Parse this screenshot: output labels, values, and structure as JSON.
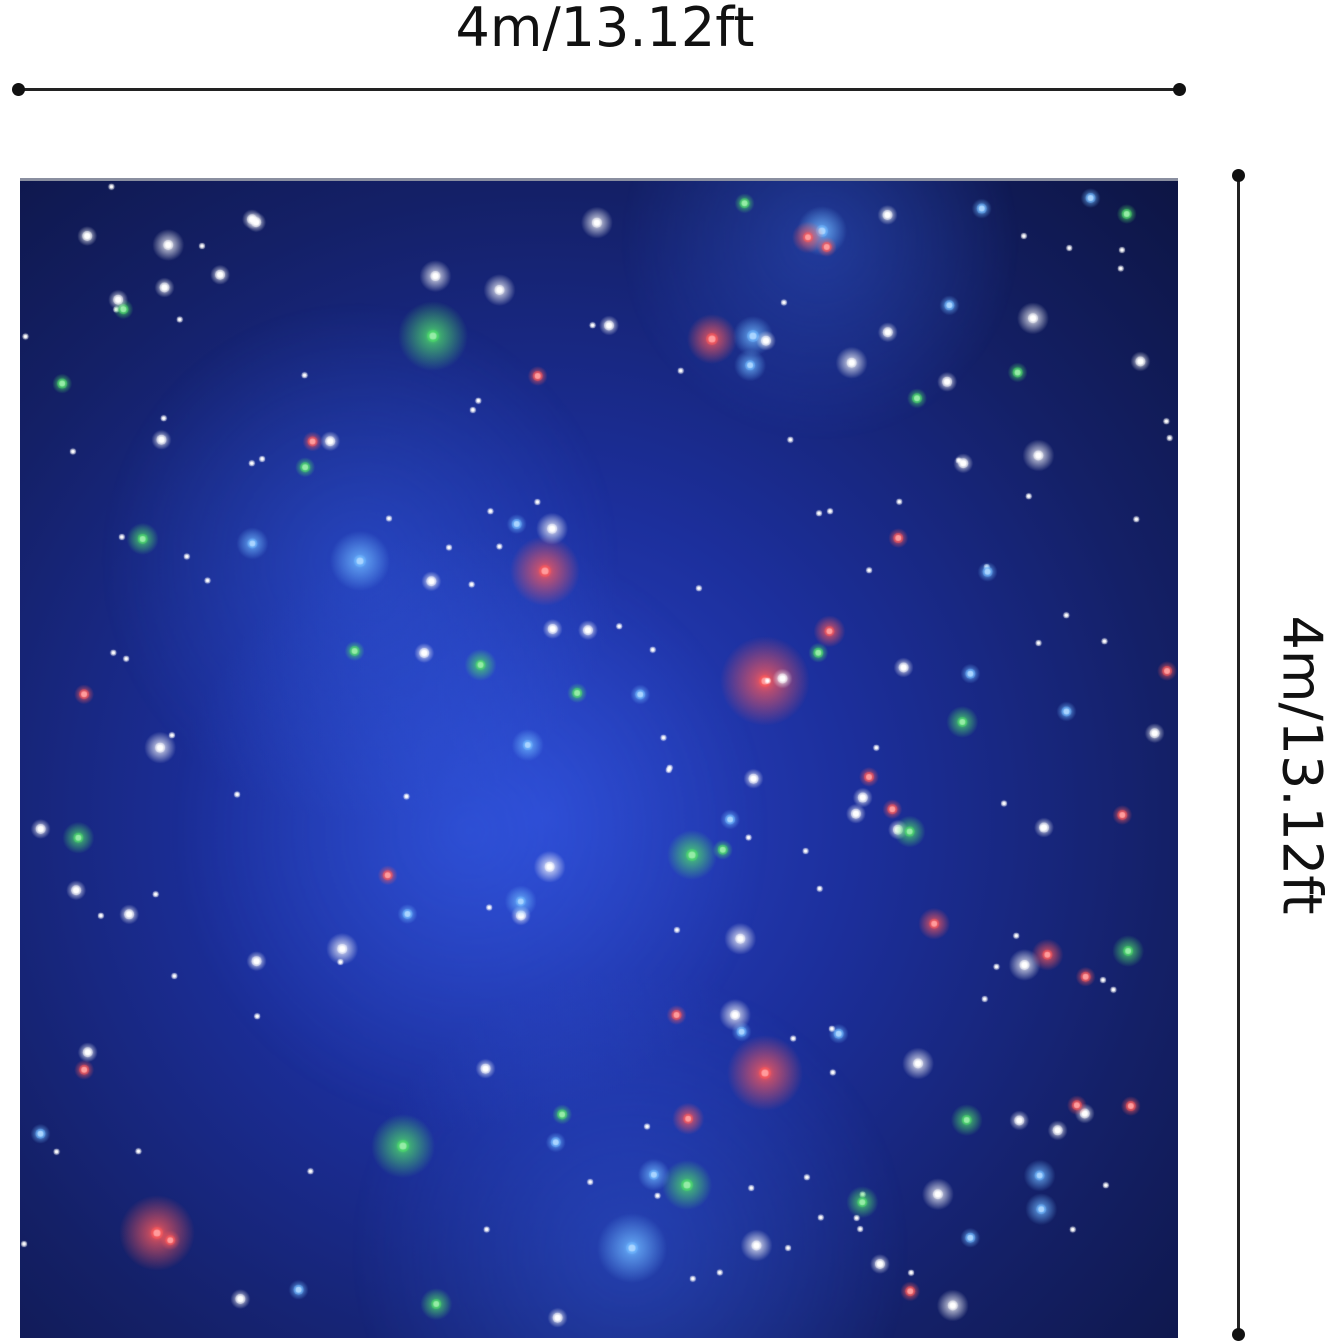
{
  "dimensions": {
    "width_label": "4m/13.12ft",
    "height_label": "4m/13.12ft"
  },
  "curtain": {
    "background_color": "#1c2f9c",
    "star_colors": {
      "white": "#ffffff",
      "blue": "#6fb8ff",
      "red": "#ff5a5a",
      "green": "#4fe06a"
    }
  }
}
